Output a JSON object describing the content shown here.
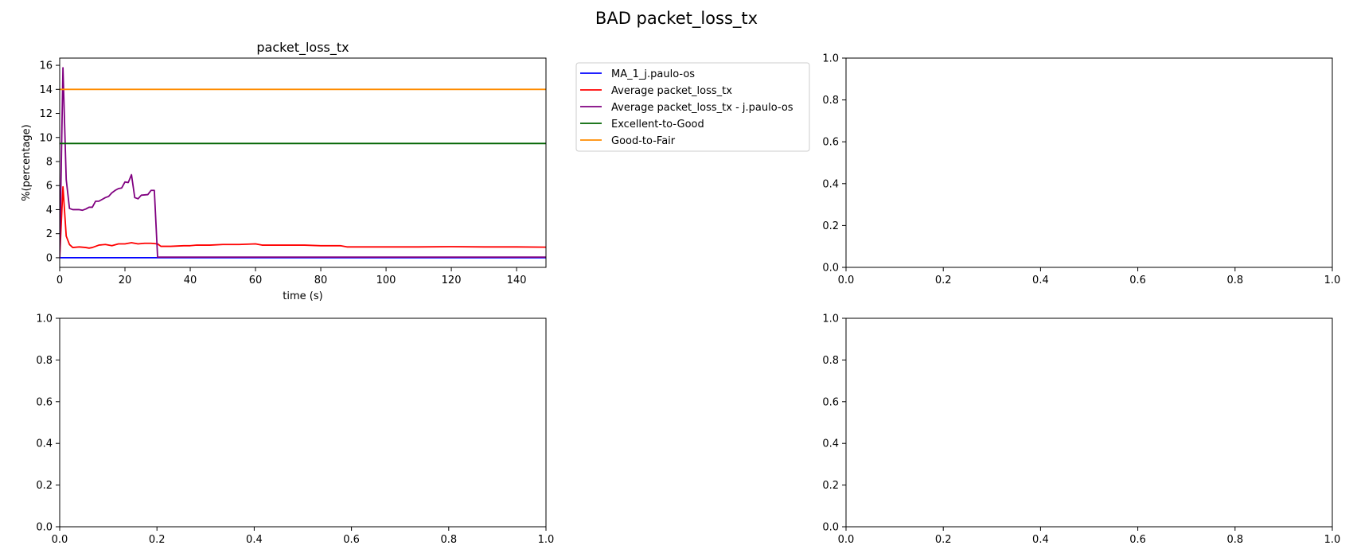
{
  "figure": {
    "suptitle": "BAD packet_loss_tx"
  },
  "chart_data": [
    {
      "type": "line",
      "title": "packet_loss_tx",
      "xlabel": "time (s)",
      "ylabel": "%(percentage)",
      "xlim": [
        0,
        149
      ],
      "ylim": [
        -0.8,
        16.6
      ],
      "xticks": [
        0,
        20,
        40,
        60,
        80,
        100,
        120,
        140
      ],
      "yticks": [
        0,
        2,
        4,
        6,
        8,
        10,
        12,
        14,
        16
      ],
      "grid": false,
      "legend_position": "outside-right",
      "series": [
        {
          "name": "MA_1_j.paulo-os",
          "color": "#0000ff",
          "points": [
            [
              0,
              0
            ],
            [
              149,
              0
            ]
          ]
        },
        {
          "name": "Average packet_loss_tx",
          "color": "#ff0000",
          "points": [
            [
              0,
              0
            ],
            [
              1,
              5.9
            ],
            [
              2,
              1.8
            ],
            [
              3,
              1.1
            ],
            [
              4,
              0.85
            ],
            [
              6,
              0.9
            ],
            [
              8,
              0.85
            ],
            [
              9,
              0.8
            ],
            [
              10,
              0.85
            ],
            [
              12,
              1.05
            ],
            [
              14,
              1.1
            ],
            [
              16,
              1.0
            ],
            [
              18,
              1.15
            ],
            [
              20,
              1.15
            ],
            [
              22,
              1.25
            ],
            [
              24,
              1.15
            ],
            [
              26,
              1.2
            ],
            [
              28,
              1.2
            ],
            [
              30,
              1.15
            ],
            [
              31,
              0.95
            ],
            [
              34,
              0.95
            ],
            [
              38,
              1.0
            ],
            [
              40,
              1.0
            ],
            [
              42,
              1.05
            ],
            [
              46,
              1.05
            ],
            [
              50,
              1.1
            ],
            [
              55,
              1.1
            ],
            [
              60,
              1.15
            ],
            [
              62,
              1.05
            ],
            [
              70,
              1.05
            ],
            [
              75,
              1.05
            ],
            [
              80,
              1.0
            ],
            [
              86,
              1.0
            ],
            [
              88,
              0.9
            ],
            [
              95,
              0.9
            ],
            [
              100,
              0.9
            ],
            [
              110,
              0.9
            ],
            [
              120,
              0.92
            ],
            [
              130,
              0.9
            ],
            [
              140,
              0.9
            ],
            [
              149,
              0.88
            ]
          ]
        },
        {
          "name": "Average packet_loss_tx - j.paulo-os",
          "color": "#800080",
          "points": [
            [
              0,
              0
            ],
            [
              1,
              15.8
            ],
            [
              2,
              6.5
            ],
            [
              3,
              4.1
            ],
            [
              4,
              4.0
            ],
            [
              6,
              4.0
            ],
            [
              7,
              3.95
            ],
            [
              8,
              4.05
            ],
            [
              9,
              4.2
            ],
            [
              10,
              4.2
            ],
            [
              11,
              4.7
            ],
            [
              12,
              4.7
            ],
            [
              13,
              4.85
            ],
            [
              14,
              5.0
            ],
            [
              15,
              5.1
            ],
            [
              16,
              5.4
            ],
            [
              17,
              5.6
            ],
            [
              18,
              5.75
            ],
            [
              19,
              5.8
            ],
            [
              20,
              6.3
            ],
            [
              21,
              6.25
            ],
            [
              22,
              6.9
            ],
            [
              23,
              5.0
            ],
            [
              24,
              4.9
            ],
            [
              25,
              5.2
            ],
            [
              27,
              5.25
            ],
            [
              28,
              5.6
            ],
            [
              29,
              5.6
            ],
            [
              30,
              0.05
            ],
            [
              149,
              0.05
            ]
          ]
        },
        {
          "name": "Excellent-to-Good",
          "color": "#006400",
          "points": [
            [
              0,
              9.5
            ],
            [
              149,
              9.5
            ]
          ]
        },
        {
          "name": "Good-to-Fair",
          "color": "#ff8c00",
          "points": [
            [
              0,
              14.0
            ],
            [
              149,
              14.0
            ]
          ]
        }
      ]
    },
    {
      "type": "line",
      "title": "",
      "xlabel": "",
      "ylabel": "",
      "xlim": [
        0,
        1
      ],
      "ylim": [
        0,
        1
      ],
      "xticks": [
        0.0,
        0.2,
        0.4,
        0.6,
        0.8,
        1.0
      ],
      "yticks": [
        0.0,
        0.2,
        0.4,
        0.6,
        0.8,
        1.0
      ],
      "grid": false,
      "series": []
    },
    {
      "type": "line",
      "title": "",
      "xlabel": "",
      "ylabel": "",
      "xlim": [
        0,
        1
      ],
      "ylim": [
        0,
        1
      ],
      "xticks": [
        0.0,
        0.2,
        0.4,
        0.6,
        0.8,
        1.0
      ],
      "yticks": [
        0.0,
        0.2,
        0.4,
        0.6,
        0.8,
        1.0
      ],
      "grid": false,
      "series": []
    },
    {
      "type": "line",
      "title": "",
      "xlabel": "",
      "ylabel": "",
      "xlim": [
        0,
        1
      ],
      "ylim": [
        0,
        1
      ],
      "xticks": [
        0.0,
        0.2,
        0.4,
        0.6,
        0.8,
        1.0
      ],
      "yticks": [
        0.0,
        0.2,
        0.4,
        0.6,
        0.8,
        1.0
      ],
      "grid": false,
      "series": []
    }
  ]
}
